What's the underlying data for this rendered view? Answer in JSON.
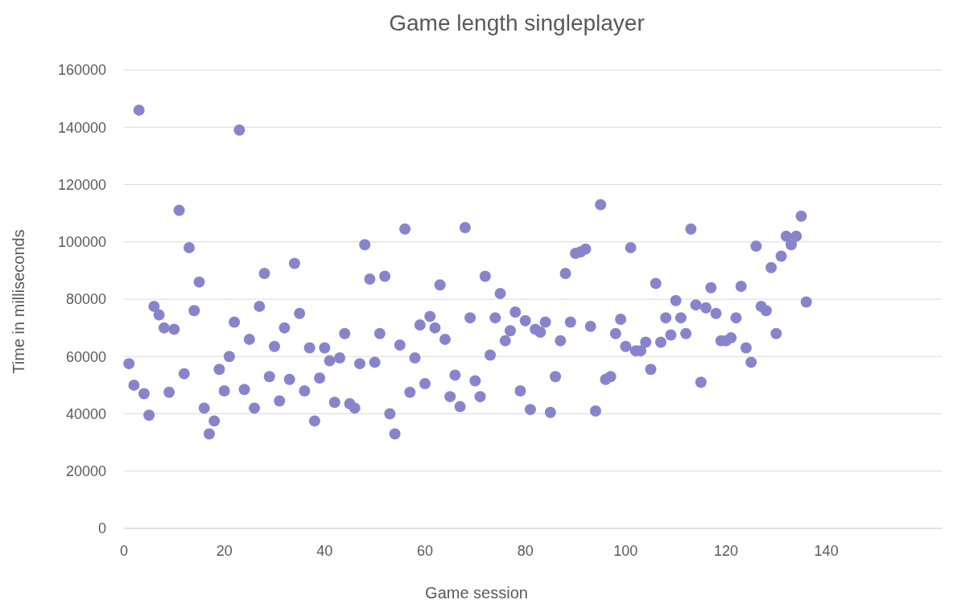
{
  "chart_data": {
    "type": "scatter",
    "title": "Game length singleplayer",
    "xlabel": "Game session",
    "ylabel": "Time in milliseconds",
    "x": [
      1,
      2,
      3,
      4,
      5,
      6,
      7,
      8,
      9,
      10,
      11,
      12,
      13,
      14,
      15,
      16,
      17,
      18,
      19,
      20,
      21,
      22,
      23,
      24,
      25,
      26,
      27,
      28,
      29,
      30,
      31,
      32,
      33,
      34,
      35,
      36,
      37,
      38,
      39,
      40,
      41,
      42,
      43,
      44,
      45,
      46,
      47,
      48,
      49,
      50,
      51,
      52,
      53,
      54,
      55,
      56,
      57,
      58,
      59,
      60,
      61,
      62,
      63,
      64,
      65,
      66,
      67,
      68,
      69,
      70,
      71,
      72,
      73,
      74,
      75,
      76,
      77,
      78,
      79,
      80,
      81,
      82,
      83,
      84,
      85,
      86,
      87,
      88,
      89,
      90,
      91,
      92,
      93,
      94,
      95,
      96,
      97,
      98,
      99,
      100,
      101,
      102,
      103,
      104,
      105,
      106,
      107,
      108,
      109,
      110,
      111,
      112,
      113,
      114,
      115,
      116,
      117,
      118,
      119,
      120,
      121,
      122,
      123,
      124,
      125,
      126,
      127,
      128,
      129,
      130,
      131,
      132,
      133,
      134,
      135,
      136
    ],
    "series": [
      {
        "color": "#8884cc",
        "values": [
          57500,
          50000,
          146000,
          47000,
          39500,
          77500,
          74500,
          70000,
          47500,
          69500,
          111000,
          54000,
          98000,
          76000,
          86000,
          42000,
          33000,
          37500,
          55500,
          48000,
          60000,
          72000,
          139000,
          48500,
          66000,
          42000,
          77500,
          89000,
          53000,
          63500,
          44500,
          70000,
          52000,
          92500,
          75000,
          48000,
          63000,
          37500,
          52500,
          63000,
          58500,
          44000,
          59500,
          68000,
          43500,
          42000,
          57500,
          99000,
          87000,
          58000,
          68000,
          88000,
          40000,
          33000,
          64000,
          104500,
          47500,
          59500,
          71000,
          50500,
          74000,
          70000,
          85000,
          66000,
          46000,
          53500,
          42500,
          105000,
          73500,
          51500,
          46000,
          88000,
          60500,
          73500,
          82000,
          65500,
          69000,
          75500,
          48000,
          72500,
          41500,
          69500,
          68500,
          72000,
          40500,
          53000,
          65500,
          89000,
          72000,
          96000,
          96500,
          97500,
          70500,
          41000,
          113000,
          52000,
          53000,
          68000,
          73000,
          63500,
          98000,
          62000,
          62000,
          65000,
          55500,
          85500,
          65000,
          73500,
          67500,
          79500,
          73500,
          68000,
          104500,
          78000,
          51000,
          77000,
          84000,
          75000,
          65500,
          65500,
          66500,
          73500,
          84500,
          63000,
          58000,
          98500,
          77500,
          76000,
          91000,
          68000,
          95000,
          102000,
          99000,
          102000,
          109000,
          79000
        ]
      }
    ],
    "xlim": [
      0,
      163
    ],
    "xticks": [
      0,
      20,
      40,
      60,
      80,
      100,
      120,
      140
    ],
    "ylim": [
      0,
      160000
    ],
    "yticks": [
      0,
      20000,
      40000,
      60000,
      80000,
      100000,
      120000,
      140000,
      160000
    ],
    "grid": "y",
    "marker": "circle"
  }
}
